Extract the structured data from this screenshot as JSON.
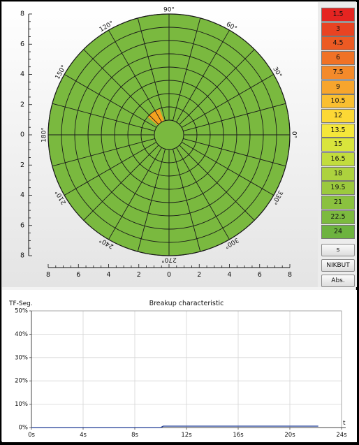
{
  "polar_map": {
    "angle_labels": [
      "0°",
      "30°",
      "60°",
      "90°",
      "120°",
      "150°",
      "180°",
      "210°",
      "240°",
      "270°",
      "300°",
      "330°"
    ],
    "base_color": "#7ab93f",
    "highlight_color": "#f4a21f",
    "highlight_segment": {
      "ring": 1,
      "start_deg": 110,
      "end_deg": 140
    },
    "axis_ticks_v": [
      "8",
      "6",
      "4",
      "2",
      "0",
      "2",
      "4",
      "6",
      "8"
    ],
    "axis_ticks_h": [
      "8",
      "6",
      "4",
      "2",
      "0",
      "2",
      "4",
      "6",
      "8"
    ]
  },
  "scale": {
    "items": [
      {
        "label": "1.5",
        "color": "#e52421"
      },
      {
        "label": "3",
        "color": "#e84322"
      },
      {
        "label": "4.5",
        "color": "#ec5a23"
      },
      {
        "label": "6",
        "color": "#f07226"
      },
      {
        "label": "7.5",
        "color": "#f48a2a"
      },
      {
        "label": "9",
        "color": "#f7a52d"
      },
      {
        "label": "10.5",
        "color": "#fabf31"
      },
      {
        "label": "12",
        "color": "#fcd835"
      },
      {
        "label": "13.5",
        "color": "#f5e73a"
      },
      {
        "label": "15",
        "color": "#d9e53c"
      },
      {
        "label": "16.5",
        "color": "#c2dc3d"
      },
      {
        "label": "18",
        "color": "#add23e"
      },
      {
        "label": "19.5",
        "color": "#9bc93e"
      },
      {
        "label": "21",
        "color": "#8ac13f"
      },
      {
        "label": "22.5",
        "color": "#7cba3f"
      },
      {
        "label": "24",
        "color": "#6db33f"
      }
    ],
    "buttons": {
      "unit": "s",
      "mode": "NIKBUT",
      "abs": "Abs."
    }
  },
  "chart_data": {
    "type": "line",
    "title": "Breakup characteristic",
    "ylabel": "TF-Seg.",
    "xlabel": "t",
    "x_ticks": [
      "0s",
      "4s",
      "8s",
      "12s",
      "16s",
      "20s",
      "24s"
    ],
    "y_ticks": [
      "0%",
      "10%",
      "20%",
      "30%",
      "40%",
      "50%"
    ],
    "xlim": [
      0,
      24
    ],
    "ylim": [
      0,
      50
    ],
    "grid": true,
    "series": [
      {
        "color": "#1f3a93",
        "points": [
          [
            0,
            0
          ],
          [
            10,
            0
          ],
          [
            10.2,
            0.6
          ],
          [
            22.2,
            0.6
          ]
        ]
      }
    ]
  }
}
